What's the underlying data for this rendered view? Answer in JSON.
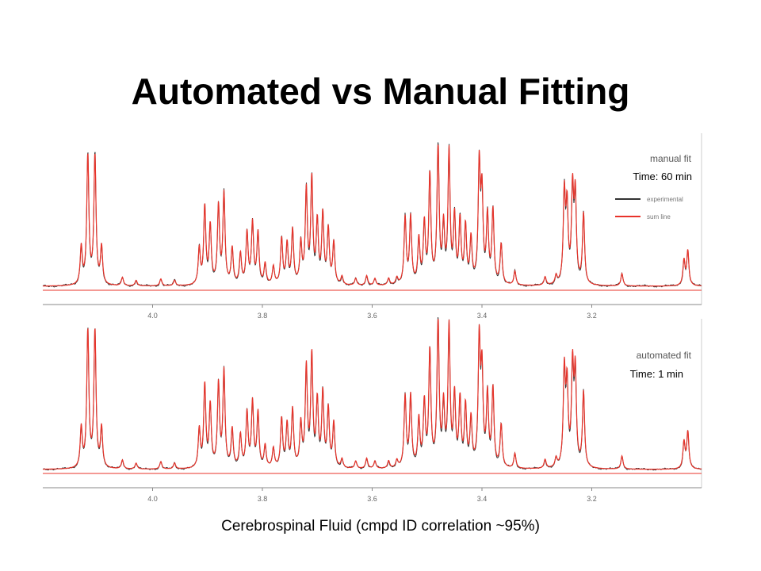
{
  "slide": {
    "title": "Automated vs Manual Fitting",
    "caption": "Cerebrospinal Fluid (cmpd ID correlation ~95%)"
  },
  "chart_data": [
    {
      "type": "line",
      "panel_title": "manual fit",
      "time_label": "Time: 60 min",
      "legend": [
        "experimental",
        "sum line"
      ],
      "xlabel": "",
      "ylabel": "",
      "xlim": [
        4.2,
        3.0
      ],
      "x_reversed": true,
      "x_ticks": [
        4.0,
        3.8,
        3.6,
        3.4,
        3.2
      ],
      "x_tick_labels": [
        "4.0",
        "3.8",
        "3.6",
        "3.4",
        "3.2"
      ],
      "grid": false,
      "legend_placement": "top-right",
      "colors": {
        "experimental": "#333333",
        "sum line": "#e8332a",
        "baseline": "#e8332a"
      }
    },
    {
      "type": "line",
      "panel_title": "automated fit",
      "time_label": "Time: 1 min",
      "legend": [],
      "xlabel": "",
      "ylabel": "",
      "xlim": [
        4.2,
        3.0
      ],
      "x_reversed": true,
      "x_ticks": [
        4.0,
        3.8,
        3.6,
        3.4,
        3.2
      ],
      "x_tick_labels": [
        "4.0",
        "3.8",
        "3.6",
        "3.4",
        "3.2"
      ],
      "grid": false,
      "legend_placement": "none",
      "colors": {
        "experimental": "#333333",
        "sum line": "#e8332a",
        "baseline": "#e8332a"
      }
    }
  ],
  "spectrum_peaks": [
    {
      "ppm": 4.13,
      "h": 0.27
    },
    {
      "ppm": 4.118,
      "h": 0.93
    },
    {
      "ppm": 4.105,
      "h": 0.93
    },
    {
      "ppm": 4.093,
      "h": 0.27
    },
    {
      "ppm": 4.055,
      "h": 0.06
    },
    {
      "ppm": 4.03,
      "h": 0.04
    },
    {
      "ppm": 3.985,
      "h": 0.05
    },
    {
      "ppm": 3.96,
      "h": 0.04
    },
    {
      "ppm": 3.915,
      "h": 0.26
    },
    {
      "ppm": 3.905,
      "h": 0.56
    },
    {
      "ppm": 3.895,
      "h": 0.42
    },
    {
      "ppm": 3.88,
      "h": 0.56
    },
    {
      "ppm": 3.87,
      "h": 0.65
    },
    {
      "ppm": 3.855,
      "h": 0.26
    },
    {
      "ppm": 3.84,
      "h": 0.22
    },
    {
      "ppm": 3.828,
      "h": 0.37
    },
    {
      "ppm": 3.818,
      "h": 0.44
    },
    {
      "ppm": 3.808,
      "h": 0.37
    },
    {
      "ppm": 3.795,
      "h": 0.15
    },
    {
      "ppm": 3.78,
      "h": 0.13
    },
    {
      "ppm": 3.765,
      "h": 0.33
    },
    {
      "ppm": 3.755,
      "h": 0.29
    },
    {
      "ppm": 3.745,
      "h": 0.39
    },
    {
      "ppm": 3.73,
      "h": 0.29
    },
    {
      "ppm": 3.72,
      "h": 0.67
    },
    {
      "ppm": 3.71,
      "h": 0.75
    },
    {
      "ppm": 3.7,
      "h": 0.44
    },
    {
      "ppm": 3.69,
      "h": 0.5
    },
    {
      "ppm": 3.68,
      "h": 0.39
    },
    {
      "ppm": 3.67,
      "h": 0.3
    },
    {
      "ppm": 3.655,
      "h": 0.06
    },
    {
      "ppm": 3.63,
      "h": 0.05
    },
    {
      "ppm": 3.61,
      "h": 0.07
    },
    {
      "ppm": 3.595,
      "h": 0.05
    },
    {
      "ppm": 3.57,
      "h": 0.05
    },
    {
      "ppm": 3.555,
      "h": 0.05
    },
    {
      "ppm": 3.54,
      "h": 0.48
    },
    {
      "ppm": 3.53,
      "h": 0.48
    },
    {
      "ppm": 3.515,
      "h": 0.32
    },
    {
      "ppm": 3.505,
      "h": 0.43
    },
    {
      "ppm": 3.495,
      "h": 0.78
    },
    {
      "ppm": 3.48,
      "h": 1.0
    },
    {
      "ppm": 3.47,
      "h": 0.4
    },
    {
      "ppm": 3.46,
      "h": 0.94
    },
    {
      "ppm": 3.45,
      "h": 0.47
    },
    {
      "ppm": 3.44,
      "h": 0.45
    },
    {
      "ppm": 3.43,
      "h": 0.41
    },
    {
      "ppm": 3.42,
      "h": 0.32
    },
    {
      "ppm": 3.405,
      "h": 0.84
    },
    {
      "ppm": 3.4,
      "h": 0.62
    },
    {
      "ppm": 3.39,
      "h": 0.48
    },
    {
      "ppm": 3.38,
      "h": 0.53
    },
    {
      "ppm": 3.365,
      "h": 0.29
    },
    {
      "ppm": 3.34,
      "h": 0.1
    },
    {
      "ppm": 3.285,
      "h": 0.06
    },
    {
      "ppm": 3.265,
      "h": 0.06
    },
    {
      "ppm": 3.25,
      "h": 0.64
    },
    {
      "ppm": 3.245,
      "h": 0.53
    },
    {
      "ppm": 3.235,
      "h": 0.66
    },
    {
      "ppm": 3.23,
      "h": 0.62
    },
    {
      "ppm": 3.215,
      "h": 0.51
    },
    {
      "ppm": 3.145,
      "h": 0.09
    },
    {
      "ppm": 3.032,
      "h": 0.18
    },
    {
      "ppm": 3.025,
      "h": 0.25
    }
  ]
}
